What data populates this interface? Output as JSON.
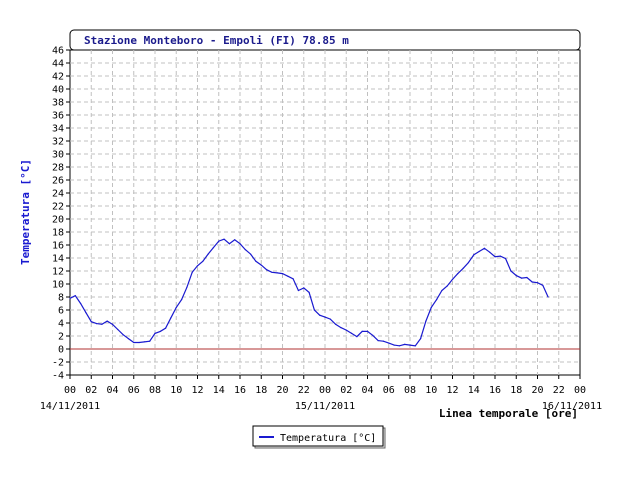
{
  "chart_data": {
    "type": "line",
    "title": "Stazione Monteboro - Empoli (FI) 78.85 m",
    "ylabel": "Temperatura [°C]",
    "xlabel": "Linea temporale [ore]",
    "ylim": [
      -4,
      46
    ],
    "ystep": 2,
    "yticks": [
      "-4",
      "-2",
      "0",
      "2",
      "4",
      "6",
      "8",
      "10",
      "12",
      "14",
      "16",
      "18",
      "20",
      "22",
      "24",
      "26",
      "28",
      "30",
      "32",
      "34",
      "36",
      "38",
      "40",
      "42",
      "44",
      "46"
    ],
    "xlim": [
      0,
      48
    ],
    "xtick_labels": [
      "00",
      "02",
      "04",
      "06",
      "08",
      "10",
      "12",
      "14",
      "16",
      "18",
      "20",
      "22",
      "00",
      "02",
      "04",
      "06",
      "08",
      "10",
      "12",
      "14",
      "16",
      "18",
      "20",
      "22",
      "00"
    ],
    "date_labels": [
      "14/11/2011",
      "15/11/2011",
      "16/11/2011"
    ],
    "reference_line": {
      "y": 0,
      "color": "#b03030"
    },
    "grid": true,
    "legend_position": "bottom-center",
    "series": [
      {
        "name": "Temperatura [°C]",
        "color": "#1a1ad0",
        "points": [
          [
            0.0,
            7.8
          ],
          [
            0.5,
            8.2
          ],
          [
            1.0,
            7.0
          ],
          [
            1.5,
            5.6
          ],
          [
            2.0,
            4.2
          ],
          [
            2.5,
            3.9
          ],
          [
            3.0,
            3.8
          ],
          [
            3.5,
            4.3
          ],
          [
            4.0,
            3.8
          ],
          [
            4.5,
            3.0
          ],
          [
            5.0,
            2.2
          ],
          [
            5.5,
            1.6
          ],
          [
            6.0,
            1.0
          ],
          [
            6.5,
            1.0
          ],
          [
            7.0,
            1.1
          ],
          [
            7.5,
            1.2
          ],
          [
            8.0,
            2.4
          ],
          [
            8.5,
            2.7
          ],
          [
            9.0,
            3.2
          ],
          [
            9.5,
            4.8
          ],
          [
            10.0,
            6.4
          ],
          [
            10.5,
            7.6
          ],
          [
            11.0,
            9.5
          ],
          [
            11.5,
            11.8
          ],
          [
            12.0,
            12.8
          ],
          [
            12.5,
            13.5
          ],
          [
            13.0,
            14.6
          ],
          [
            13.5,
            15.6
          ],
          [
            14.0,
            16.6
          ],
          [
            14.5,
            16.9
          ],
          [
            15.0,
            16.2
          ],
          [
            15.5,
            16.8
          ],
          [
            16.0,
            16.2
          ],
          [
            16.5,
            15.3
          ],
          [
            17.0,
            14.6
          ],
          [
            17.5,
            13.5
          ],
          [
            18.0,
            12.9
          ],
          [
            18.5,
            12.2
          ],
          [
            19.0,
            11.8
          ],
          [
            19.5,
            11.7
          ],
          [
            20.0,
            11.6
          ],
          [
            20.5,
            11.2
          ],
          [
            21.0,
            10.8
          ],
          [
            21.5,
            9.0
          ],
          [
            22.0,
            9.4
          ],
          [
            22.5,
            8.7
          ],
          [
            23.0,
            6.0
          ],
          [
            23.5,
            5.2
          ],
          [
            24.0,
            4.9
          ],
          [
            24.5,
            4.6
          ],
          [
            25.0,
            3.8
          ],
          [
            25.5,
            3.3
          ],
          [
            26.0,
            2.9
          ],
          [
            26.5,
            2.4
          ],
          [
            27.0,
            1.9
          ],
          [
            27.5,
            2.7
          ],
          [
            28.0,
            2.7
          ],
          [
            28.5,
            2.1
          ],
          [
            29.0,
            1.3
          ],
          [
            29.5,
            1.2
          ],
          [
            30.0,
            0.9
          ],
          [
            30.5,
            0.6
          ],
          [
            31.0,
            0.5
          ],
          [
            31.5,
            0.7
          ],
          [
            32.0,
            0.6
          ],
          [
            32.5,
            0.5
          ],
          [
            33.0,
            1.6
          ],
          [
            33.5,
            4.3
          ],
          [
            34.0,
            6.4
          ],
          [
            34.5,
            7.6
          ],
          [
            35.0,
            9.0
          ],
          [
            35.5,
            9.7
          ],
          [
            36.0,
            10.7
          ],
          [
            36.5,
            11.6
          ],
          [
            37.0,
            12.4
          ],
          [
            37.5,
            13.3
          ],
          [
            38.0,
            14.5
          ],
          [
            38.5,
            15.0
          ],
          [
            39.0,
            15.5
          ],
          [
            39.5,
            14.9
          ],
          [
            40.0,
            14.2
          ],
          [
            40.5,
            14.3
          ],
          [
            41.0,
            13.9
          ],
          [
            41.5,
            12.0
          ],
          [
            42.0,
            11.3
          ],
          [
            42.5,
            10.9
          ],
          [
            43.0,
            11.0
          ],
          [
            43.5,
            10.3
          ],
          [
            44.0,
            10.2
          ],
          [
            44.5,
            9.8
          ],
          [
            45.0,
            8.0
          ]
        ]
      }
    ]
  }
}
